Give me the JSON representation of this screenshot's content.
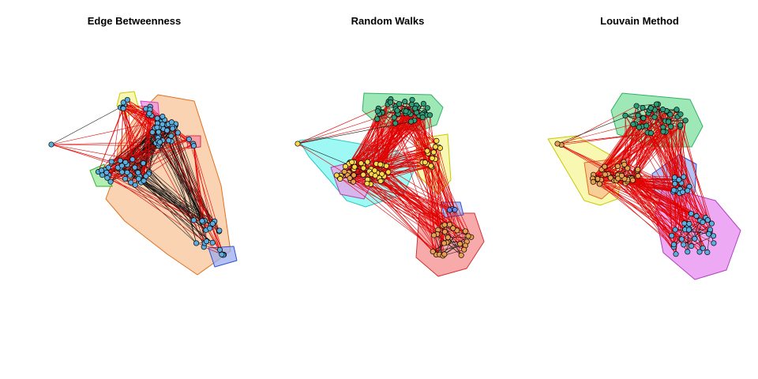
{
  "panels": [
    {
      "id": "edge_betweenness",
      "title": "Edge Betweenness",
      "node_color": "#5BAEE0",
      "communities": [
        {
          "color": "#F4A460",
          "hull_color": "#F8C49A",
          "stroke": "#E07020"
        },
        {
          "color": "#FFFF66",
          "hull_color": "#F5F59A",
          "stroke": "#C8C800"
        },
        {
          "color": "#FF66CC",
          "hull_color": "#F08CE0",
          "stroke": "#D040C0"
        },
        {
          "color": "#66DD66",
          "hull_color": "#9AE89A",
          "stroke": "#30B030"
        },
        {
          "color": "#6688EE",
          "hull_color": "#9AAEEE",
          "stroke": "#3050D0"
        },
        {
          "color": "#FF6688",
          "hull_color": "#F58CA0",
          "stroke": "#D03050"
        }
      ]
    },
    {
      "id": "random_walks",
      "title": "Random Walks",
      "node_color": "#FFD84A",
      "communities": [
        {
          "color": "#2E9E7A",
          "hull_color": "#7EE0A0",
          "stroke": "#30B060"
        },
        {
          "color": "#FFD84A",
          "hull_color": "#F5F59A",
          "stroke": "#C8C800"
        },
        {
          "color": "#FFD84A",
          "hull_color": "#7EF5F0",
          "stroke": "#30C8C0"
        },
        {
          "color": "#E8A050",
          "hull_color": "#F58C8C",
          "stroke": "#D03030"
        },
        {
          "color": "#E8A050",
          "hull_color": "#E8A0E8",
          "stroke": "#B040B0"
        },
        {
          "color": "#6688EE",
          "hull_color": "#9AAEEE",
          "stroke": "#3050D0"
        }
      ]
    },
    {
      "id": "louvain",
      "title": "Louvain Method",
      "node_color": "#5BAEE0",
      "communities": [
        {
          "color": "#2E9E7A",
          "hull_color": "#7EE0A0",
          "stroke": "#30B060"
        },
        {
          "color": "#E8A050",
          "hull_color": "#F5F59A",
          "stroke": "#C8C800"
        },
        {
          "color": "#E8A050",
          "hull_color": "#F5C08C",
          "stroke": "#E07020"
        },
        {
          "color": "#5BAEE0",
          "hull_color": "#9AAEEE",
          "stroke": "#3050D0"
        },
        {
          "color": "#5BAEE0",
          "hull_color": "#E88CF0",
          "stroke": "#B040C0"
        }
      ]
    }
  ]
}
